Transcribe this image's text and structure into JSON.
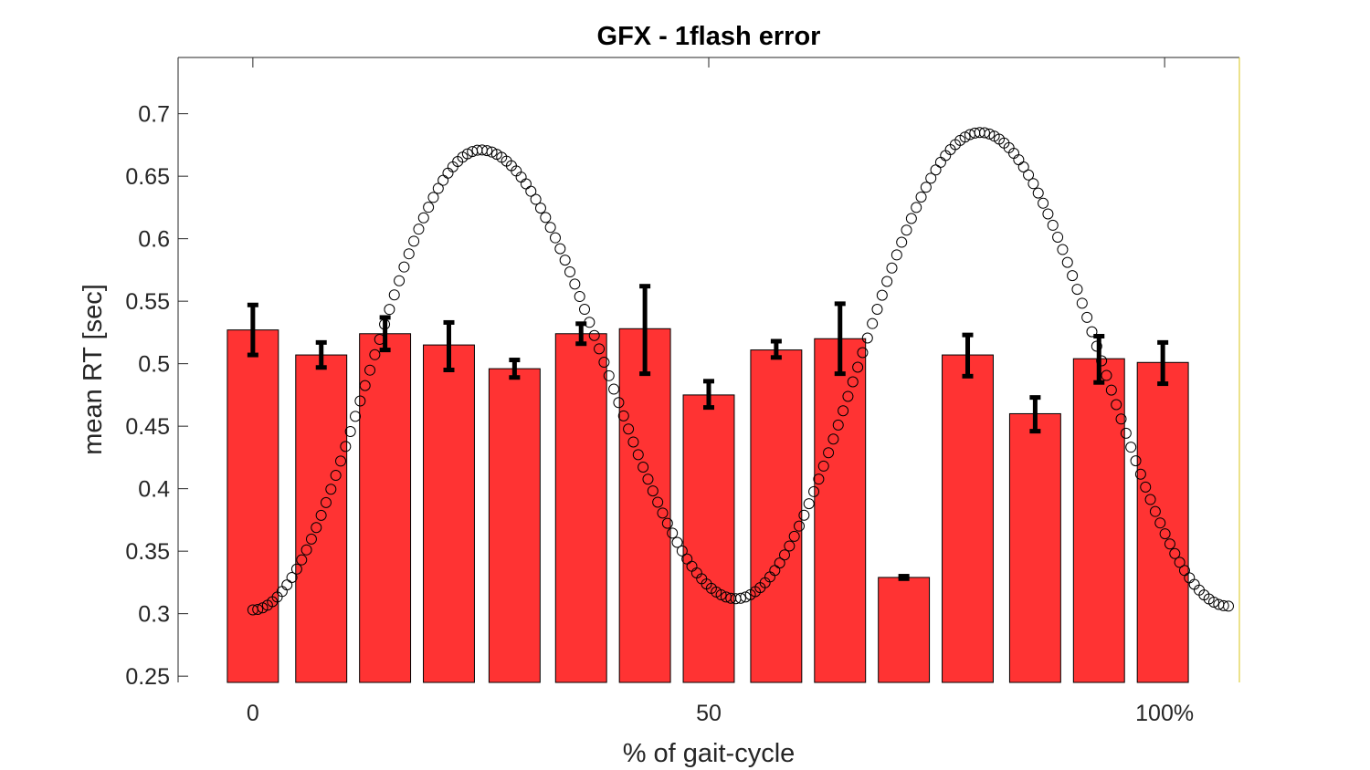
{
  "chart_data": {
    "type": "bar",
    "title": "GFX - 1flash error",
    "xlabel": "% of gait-cycle",
    "ylabel": "mean RT [sec]",
    "xlim": [
      -8.2,
      108.2
    ],
    "ylim": [
      0.245,
      0.745
    ],
    "xticks": [
      0,
      50,
      100
    ],
    "xtick_labels": [
      "0",
      "50",
      "100%"
    ],
    "yticks": [
      0.25,
      0.3,
      0.35,
      0.4,
      0.45,
      0.5,
      0.55,
      0.6,
      0.65,
      0.7
    ],
    "ytick_labels": [
      "0.25",
      "0.3",
      "0.35",
      "0.4",
      "0.45",
      "0.5",
      "0.55",
      "0.6",
      "0.65",
      "0.7"
    ],
    "bar_color": "#ff3333",
    "bar_width": 5.6,
    "bars": [
      {
        "x": 0,
        "value": 0.527,
        "err_low": 0.507,
        "err_high": 0.547
      },
      {
        "x": 7.5,
        "value": 0.507,
        "err_low": 0.497,
        "err_high": 0.517
      },
      {
        "x": 14.5,
        "value": 0.524,
        "err_low": 0.511,
        "err_high": 0.537
      },
      {
        "x": 21.5,
        "value": 0.515,
        "err_low": 0.495,
        "err_high": 0.533
      },
      {
        "x": 28.7,
        "value": 0.496,
        "err_low": 0.489,
        "err_high": 0.503
      },
      {
        "x": 36,
        "value": 0.524,
        "err_low": 0.516,
        "err_high": 0.532
      },
      {
        "x": 43,
        "value": 0.528,
        "err_low": 0.492,
        "err_high": 0.562
      },
      {
        "x": 50,
        "value": 0.475,
        "err_low": 0.465,
        "err_high": 0.486
      },
      {
        "x": 57.4,
        "value": 0.511,
        "err_low": 0.505,
        "err_high": 0.518
      },
      {
        "x": 64.4,
        "value": 0.52,
        "err_low": 0.492,
        "err_high": 0.548
      },
      {
        "x": 71.4,
        "value": 0.329,
        "err_low": 0.328,
        "err_high": 0.33
      },
      {
        "x": 78.4,
        "value": 0.507,
        "err_low": 0.49,
        "err_high": 0.523
      },
      {
        "x": 85.8,
        "value": 0.46,
        "err_low": 0.446,
        "err_high": 0.473
      },
      {
        "x": 92.8,
        "value": 0.504,
        "err_low": 0.485,
        "err_high": 0.522
      },
      {
        "x": 99.8,
        "value": 0.501,
        "err_low": 0.484,
        "err_high": 0.517
      }
    ],
    "curve": {
      "marker": "circle",
      "color": "#000000",
      "x_start": 0,
      "x_end": 107,
      "n_points": 201,
      "min_start": 0.303,
      "max1": 0.671,
      "max1_x": 25,
      "min_mid": 0.312,
      "min_mid_x": 53,
      "max2": 0.685,
      "max2_x": 79.8,
      "min_end": 0.306
    }
  }
}
